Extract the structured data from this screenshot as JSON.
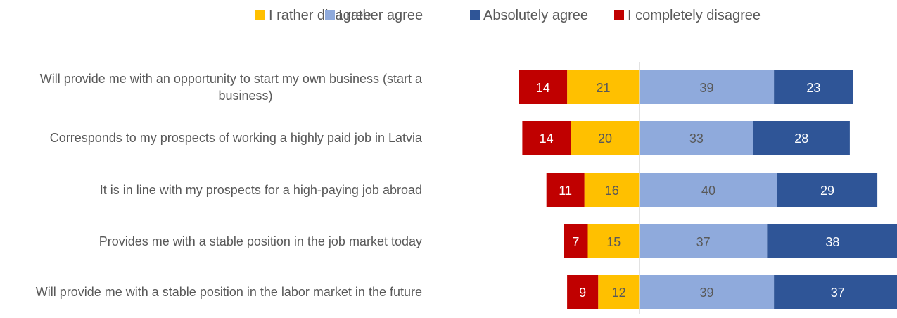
{
  "chart_data": {
    "type": "bar",
    "orientation": "horizontal",
    "stacking": "diverging",
    "title": "",
    "xlabel": "",
    "ylabel": "",
    "grid": false,
    "legend_position": "top",
    "legend": [
      {
        "series": "rather_disagree",
        "label": "I rather disagree",
        "color": "#FFC000"
      },
      {
        "series": "rather_agree",
        "label": "I rather agree",
        "color": "#8FAADC"
      },
      {
        "series": "absolutely_agree",
        "label": "Absolutely agree",
        "color": "#2F5597"
      },
      {
        "series": "completely_disagree",
        "label": "I completely disagree",
        "color": "#C00000"
      }
    ],
    "categories": [
      {
        "lines": [
          "Will provide me with an opportunity to start my own business (start a",
          "business)"
        ]
      },
      {
        "lines": [
          "Corresponds to my prospects of working a highly paid job in Latvia"
        ]
      },
      {
        "lines": [
          "It is in line with my prospects for a high-paying job abroad"
        ]
      },
      {
        "lines": [
          "Provides me with a stable position in the job market today"
        ]
      },
      {
        "lines": [
          "Will provide me with a stable position in the labor market in the future"
        ]
      }
    ],
    "series": [
      {
        "key": "completely_disagree",
        "side": "negative",
        "color": "#C00000",
        "label_color": "#FFFFFF",
        "values": [
          14,
          14,
          11,
          7,
          9
        ]
      },
      {
        "key": "rather_disagree",
        "side": "negative",
        "color": "#FFC000",
        "label_color": "#595959",
        "values": [
          21,
          20,
          16,
          15,
          12
        ]
      },
      {
        "key": "rather_agree",
        "side": "positive",
        "color": "#8FAADC",
        "label_color": "#595959",
        "values": [
          39,
          33,
          40,
          37,
          39
        ]
      },
      {
        "key": "absolutely_agree",
        "side": "positive",
        "color": "#2F5597",
        "label_color": "#FFFFFF",
        "values": [
          23,
          28,
          29,
          38,
          37
        ]
      }
    ],
    "negative_stack_order": [
      "rather_disagree",
      "completely_disagree"
    ],
    "positive_stack_order": [
      "rather_agree",
      "absolutely_agree"
    ],
    "text_color": "#595959",
    "axis_color": "#D9D9D9"
  }
}
